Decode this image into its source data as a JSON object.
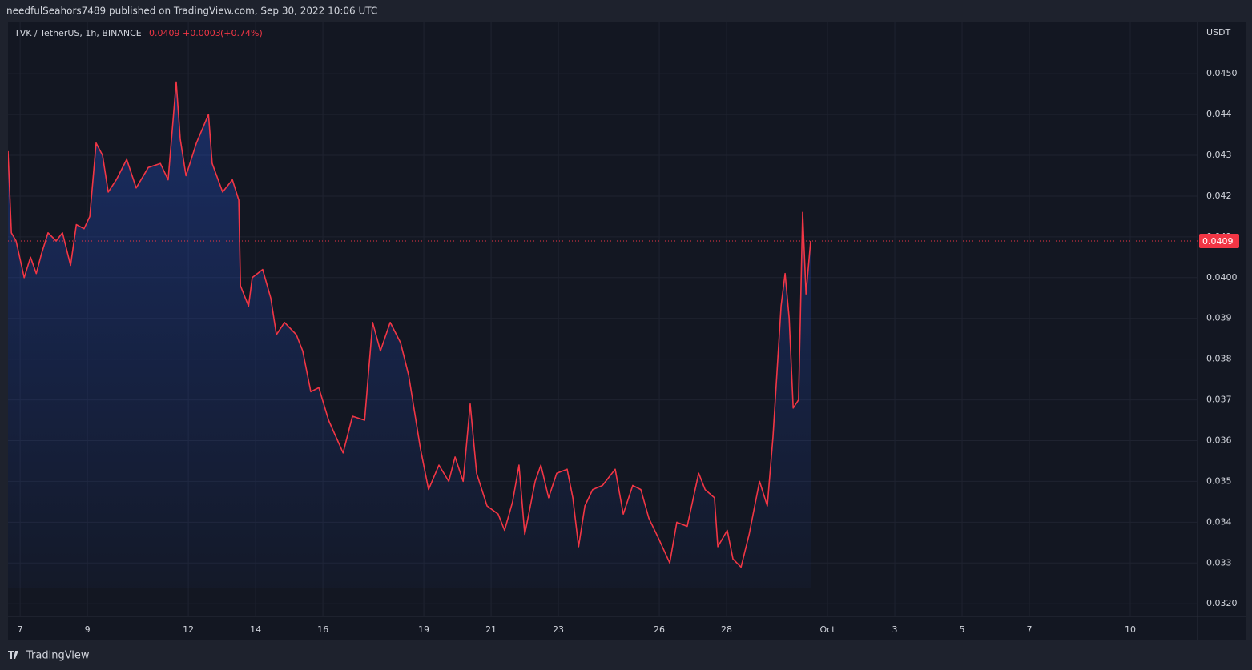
{
  "header": {
    "publisher": "needfulSeahors7489 published on TradingView.com, Sep 30, 2022 10:06 UTC",
    "price": "0.0409",
    "change": "+0.0003",
    "change_pct": "(+0.74%)",
    "currency": "USDT",
    "brand": "TradingView"
  },
  "chart_data": {
    "type": "area",
    "x": [
      6.64,
      6.74,
      6.88,
      7.12,
      7.31,
      7.48,
      7.64,
      7.83,
      8.07,
      8.26,
      8.5,
      8.67,
      8.9,
      9.07,
      9.26,
      9.45,
      9.62,
      9.86,
      10.17,
      10.45,
      10.81,
      11.17,
      11.4,
      11.64,
      11.76,
      11.93,
      12.24,
      12.6,
      12.71,
      13.02,
      13.31,
      13.5,
      13.55,
      13.79,
      13.9,
      14.21,
      14.45,
      14.62,
      14.86,
      15.21,
      15.4,
      15.64,
      15.88,
      16.17,
      16.6,
      16.88,
      17.24,
      17.48,
      17.71,
      18.0,
      18.31,
      18.55,
      18.9,
      19.14,
      19.45,
      19.74,
      19.93,
      20.17,
      20.38,
      20.57,
      20.88,
      21.21,
      21.4,
      21.64,
      21.83,
      22.0,
      22.31,
      22.48,
      22.71,
      22.95,
      23.26,
      23.43,
      23.6,
      23.79,
      24.02,
      24.31,
      24.69,
      24.93,
      25.21,
      25.45,
      25.69,
      25.98,
      26.31,
      26.52,
      26.83,
      27.17,
      27.36,
      27.64,
      27.74,
      28.02,
      28.19,
      28.43,
      28.67,
      28.98,
      29.21,
      29.38,
      29.62,
      29.74,
      29.86,
      29.98,
      30.14,
      30.26,
      30.36,
      30.5
    ],
    "series": [
      {
        "name": "TVK / TetherUS, 1h, BINANCE",
        "color": "#f23645",
        "values": [
          0.0431,
          0.0411,
          0.0409,
          0.04,
          0.0405,
          0.0401,
          0.0406,
          0.0411,
          0.0409,
          0.0411,
          0.0403,
          0.0413,
          0.0412,
          0.0415,
          0.0433,
          0.043,
          0.0421,
          0.0424,
          0.0429,
          0.0422,
          0.0427,
          0.0428,
          0.0424,
          0.0448,
          0.0434,
          0.0425,
          0.0433,
          0.044,
          0.0428,
          0.0421,
          0.0424,
          0.0419,
          0.0398,
          0.0393,
          0.04,
          0.0402,
          0.0395,
          0.0386,
          0.0389,
          0.0386,
          0.0382,
          0.0372,
          0.0373,
          0.0365,
          0.0357,
          0.0366,
          0.0365,
          0.0389,
          0.0382,
          0.0389,
          0.0384,
          0.0376,
          0.0358,
          0.0348,
          0.0354,
          0.035,
          0.0356,
          0.035,
          0.0369,
          0.0352,
          0.0344,
          0.0342,
          0.0338,
          0.0345,
          0.0354,
          0.0337,
          0.035,
          0.0354,
          0.0346,
          0.0352,
          0.0353,
          0.0346,
          0.0334,
          0.0344,
          0.0348,
          0.0349,
          0.0353,
          0.0342,
          0.0349,
          0.0348,
          0.0341,
          0.0336,
          0.033,
          0.034,
          0.0339,
          0.0352,
          0.0348,
          0.0346,
          0.0334,
          0.0338,
          0.0331,
          0.0329,
          0.0337,
          0.035,
          0.0344,
          0.0361,
          0.0393,
          0.0401,
          0.039,
          0.0368,
          0.037,
          0.0416,
          0.0396,
          0.0409
        ]
      }
    ],
    "last_price": 0.0409,
    "xlim": [
      6.64,
      42
    ],
    "xticks": [
      7,
      9,
      12,
      14,
      16,
      19,
      21,
      23,
      26,
      28,
      {
        "value": 31,
        "label": "Oct"
      },
      {
        "value": 33,
        "label": "3"
      },
      {
        "value": 35,
        "label": "5"
      },
      {
        "value": 37,
        "label": "7"
      },
      {
        "value": 40,
        "label": "10"
      }
    ],
    "ylim": [
      0.03169,
      0.04626
    ],
    "yticks": [
      {
        "value": 0.032,
        "label": "0.0320"
      },
      0.033,
      0.034,
      0.035,
      0.036,
      0.037,
      0.038,
      0.039,
      {
        "value": 0.04,
        "label": "0.0400"
      },
      0.041,
      0.042,
      0.043,
      0.044,
      {
        "value": 0.045,
        "label": "0.0450"
      }
    ],
    "grid": true
  }
}
